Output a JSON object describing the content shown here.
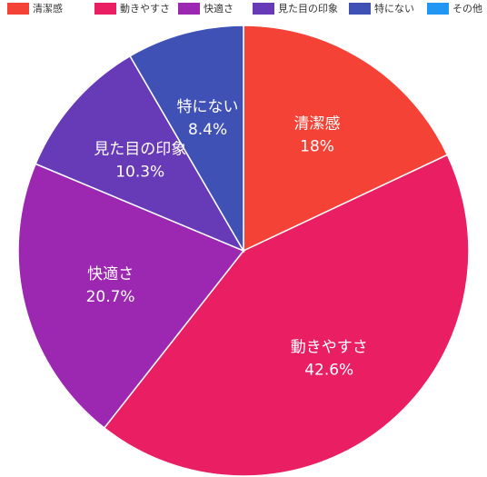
{
  "chart_data": {
    "type": "pie",
    "categories": [
      "清潔感",
      "動きやすさ",
      "快適さ",
      "見た目の印象",
      "特にない",
      "その他"
    ],
    "values": [
      18,
      42.6,
      20.7,
      10.3,
      8.4,
      0
    ],
    "value_labels": [
      "18%",
      "42.6%",
      "20.7%",
      "10.3%",
      "8.4%",
      null
    ],
    "colors": [
      "#f44336",
      "#e91e63",
      "#9c27b0",
      "#673ab7",
      "#3f51b5",
      "#2196f3"
    ],
    "legend": "top"
  }
}
